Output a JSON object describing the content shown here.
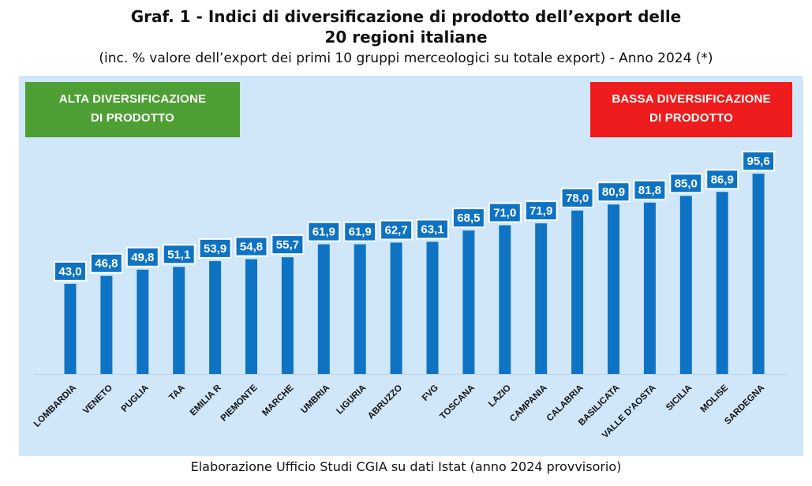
{
  "title_line1": "Graf. 1 - Indici di diversificazione di prodotto dell’export delle",
  "title_line2": "20 regioni italiane",
  "subtitle": "(inc. % valore dell’export dei primi 10 gruppi merceologici su totale export) - Anno 2024 (*)",
  "badges": {
    "high_line1": "ALTA DIVERSIFICAZIONE",
    "high_line2": "DI PRODOTTO",
    "low_line1": "BASSA DIVERSIFICAZIONE",
    "low_line2": "DI PRODOTTO"
  },
  "footer": "Elaborazione Ufficio Studi CGIA su dati Istat (anno 2024 provvisorio)",
  "colors": {
    "bar": "#0f73c3",
    "label_box": "#0f73c3",
    "background": "#cfe7f8",
    "high_badge": "#4e9f34",
    "low_badge": "#ee1c1c"
  },
  "chart_data": {
    "type": "bar",
    "categories": [
      "LOMBARDIA",
      "VENETO",
      "PUGLIA",
      "TAA",
      "EMILIA R",
      "PIEMONTE",
      "MARCHE",
      "UMBRIA",
      "LIGURIA",
      "ABRUZZO",
      "FVG",
      "TOSCANA",
      "LAZIO",
      "CAMPANIA",
      "CALABRIA",
      "BASILICATA",
      "VALLE D'AOSTA",
      "SICILIA",
      "MOLISE",
      "SARDEGNA"
    ],
    "values": [
      43.0,
      46.8,
      49.8,
      51.1,
      53.9,
      54.8,
      55.7,
      61.9,
      61.9,
      62.7,
      63.1,
      68.5,
      71.0,
      71.9,
      78.0,
      80.9,
      81.8,
      85.0,
      86.9,
      95.6
    ],
    "value_labels": [
      "43,0",
      "46,8",
      "49,8",
      "51,1",
      "53,9",
      "54,8",
      "55,7",
      "61,9",
      "61,9",
      "62,7",
      "63,1",
      "68,5",
      "71,0",
      "71,9",
      "78,0",
      "80,9",
      "81,8",
      "85,0",
      "86,9",
      "95,6"
    ],
    "grid": false,
    "legend": "none"
  }
}
